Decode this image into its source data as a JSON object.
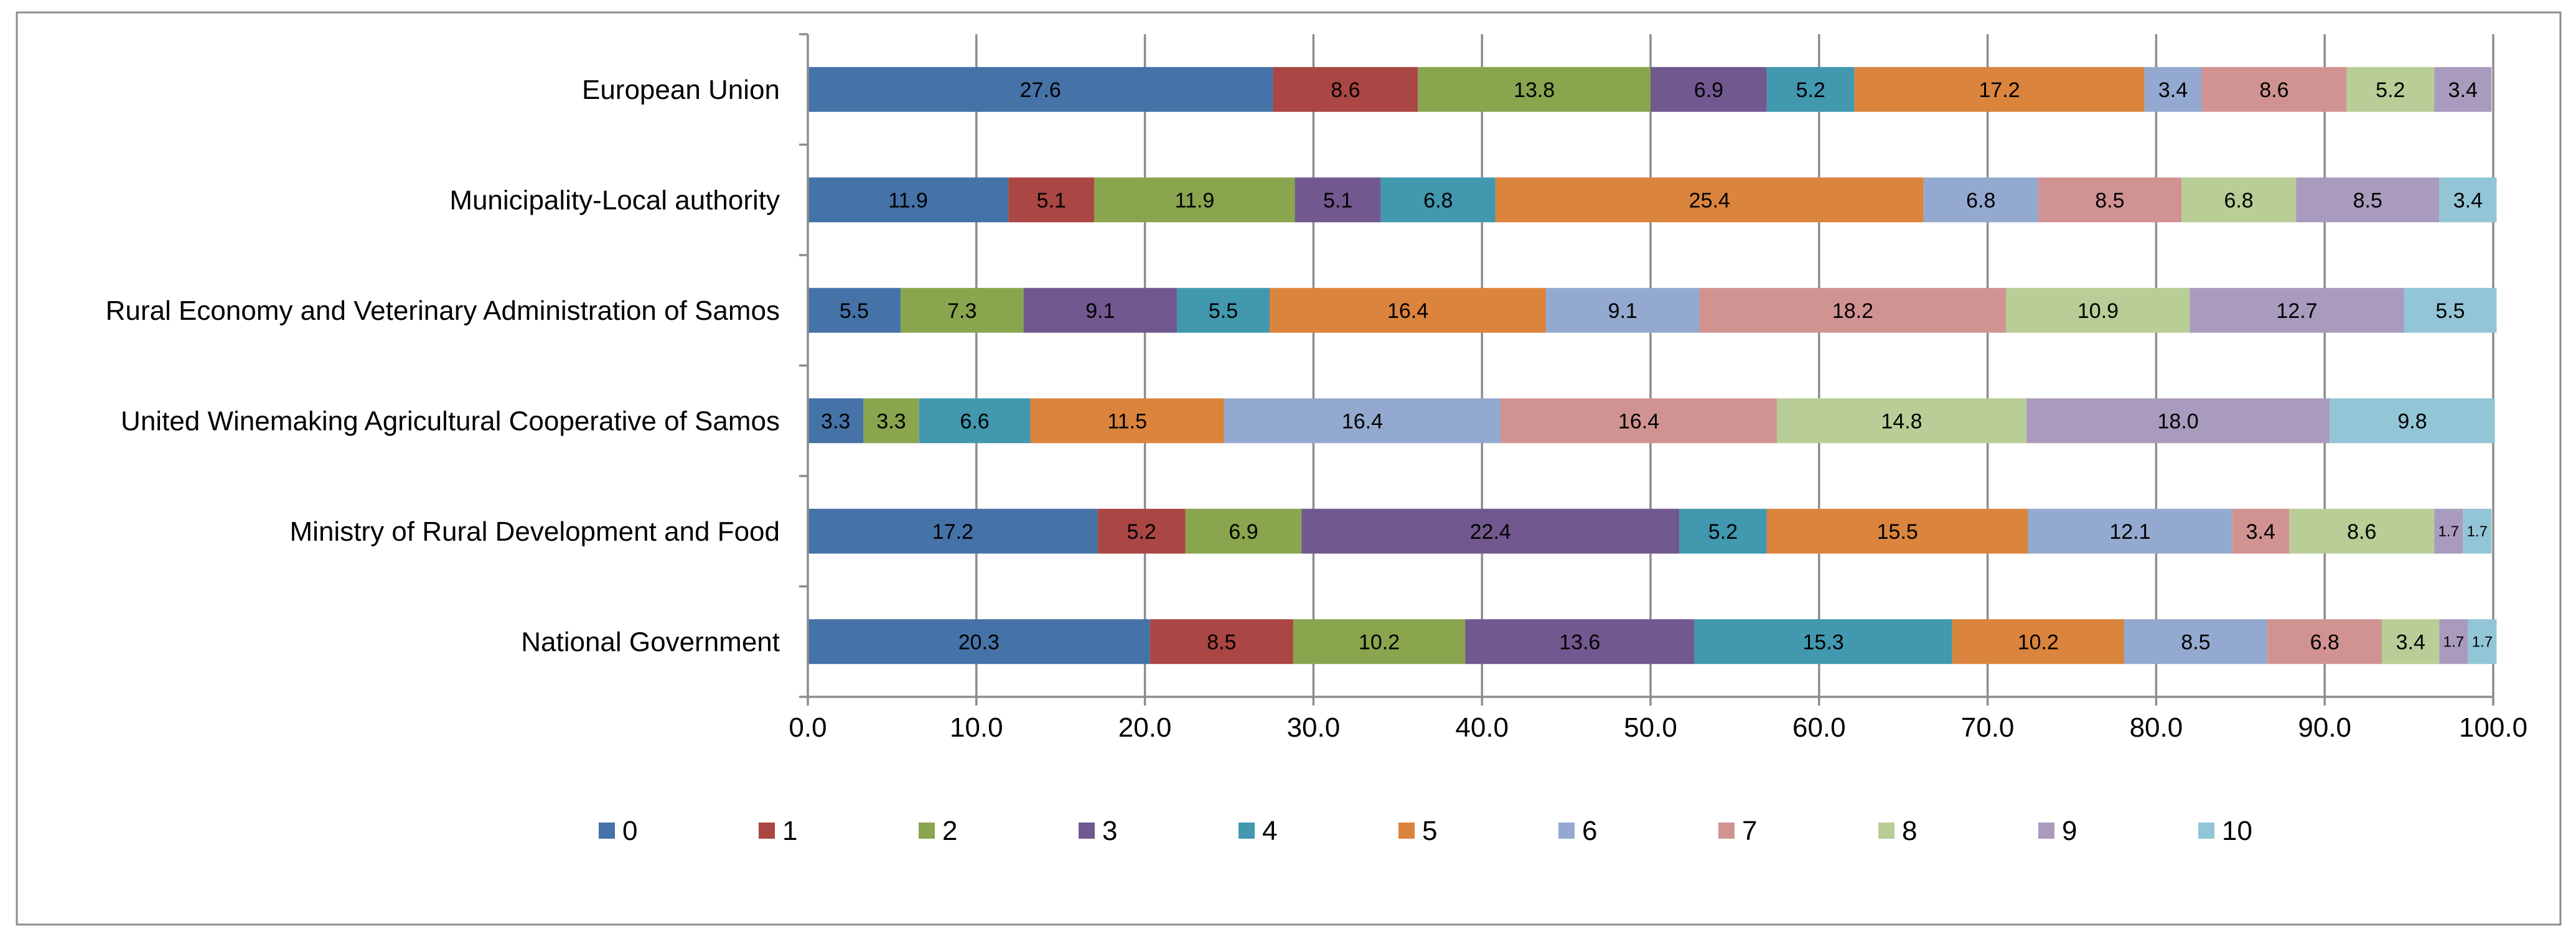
{
  "chart_data": {
    "type": "stacked-bar-horizontal",
    "title": "",
    "xlabel": "",
    "ylabel": "",
    "xlim": [
      0,
      100
    ],
    "x_ticks": [
      "0.0",
      "10.0",
      "20.0",
      "30.0",
      "40.0",
      "50.0",
      "60.0",
      "70.0",
      "80.0",
      "90.0",
      "100.0"
    ],
    "grid": true,
    "legend_position": "bottom",
    "categories": [
      "European Union",
      "Municipality-Local authority",
      "Rural Economy and Veterinary Administration of Samos",
      "United Winemaking Agricultural Cooperative of Samos",
      "Ministry of Rural Development and Food",
      "National Government"
    ],
    "series": [
      {
        "name": "0",
        "color": "#4572a7",
        "values": [
          27.6,
          11.9,
          5.5,
          3.3,
          17.2,
          20.3
        ]
      },
      {
        "name": "1",
        "color": "#aa4643",
        "values": [
          8.6,
          5.1,
          0,
          0,
          5.2,
          8.5
        ]
      },
      {
        "name": "2",
        "color": "#89a54e",
        "values": [
          13.8,
          11.9,
          7.3,
          3.3,
          6.9,
          10.2
        ]
      },
      {
        "name": "3",
        "color": "#71588f",
        "values": [
          6.9,
          5.1,
          9.1,
          0,
          22.4,
          13.6
        ]
      },
      {
        "name": "4",
        "color": "#4198af",
        "values": [
          5.2,
          6.8,
          5.5,
          6.6,
          5.2,
          15.3
        ]
      },
      {
        "name": "5",
        "color": "#db843d",
        "values": [
          17.2,
          25.4,
          16.4,
          11.5,
          15.5,
          10.2
        ]
      },
      {
        "name": "6",
        "color": "#93a9cf",
        "values": [
          3.4,
          6.8,
          9.1,
          16.4,
          12.1,
          8.5
        ]
      },
      {
        "name": "7",
        "color": "#d19392",
        "values": [
          8.6,
          8.5,
          18.2,
          16.4,
          3.4,
          6.8
        ]
      },
      {
        "name": "8",
        "color": "#b9cd96",
        "values": [
          5.2,
          6.8,
          10.9,
          14.8,
          8.6,
          3.4
        ]
      },
      {
        "name": "9",
        "color": "#a99bbd",
        "values": [
          3.4,
          8.5,
          12.7,
          18.0,
          1.7,
          1.7
        ]
      },
      {
        "name": "10",
        "color": "#92c5d6",
        "values": [
          0,
          3.4,
          5.5,
          9.8,
          1.7,
          1.7
        ]
      }
    ],
    "labels": [
      [
        "27.6",
        "8.6",
        "13.8",
        "6.9",
        "5.2",
        "17.2",
        "3.4",
        "8.6",
        "5.2",
        "3.4",
        ""
      ],
      [
        "11.9",
        "5.1",
        "11.9",
        "5.1",
        "6.8",
        "25.4",
        "6.8",
        "8.5",
        "6.8",
        "8.5",
        "3.4"
      ],
      [
        "5.5",
        "",
        "7.3",
        "9.1",
        "5.5",
        "16.4",
        "9.1",
        "18.2",
        "10.9",
        "12.7",
        "5.5"
      ],
      [
        "3.3",
        "",
        "3.3",
        "",
        "6.6",
        "11.5",
        "16.4",
        "16.4",
        "14.8",
        "18.0",
        "9.8"
      ],
      [
        "17.2",
        "5.2",
        "6.9",
        "22.4",
        "5.2",
        "15.5",
        "12.1",
        "3.4",
        "8.6",
        "1.7",
        "1.7"
      ],
      [
        "20.3",
        "8.5",
        "10.2",
        "13.6",
        "15.3",
        "10.2",
        "8.5",
        "6.8",
        "3.4",
        "1.7",
        "1.7"
      ]
    ]
  }
}
